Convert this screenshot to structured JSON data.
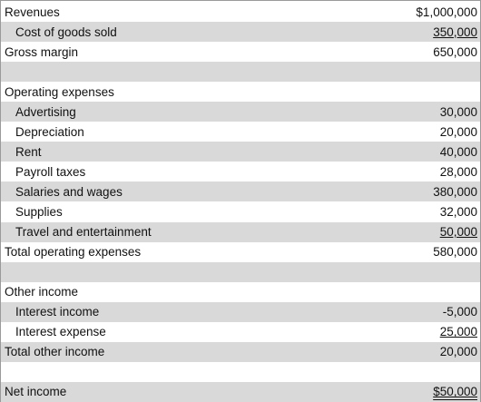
{
  "statement": {
    "rows": [
      {
        "label": "Revenues",
        "value": "$1,000,000"
      },
      {
        "label": "Cost of goods sold",
        "value": "350,000"
      },
      {
        "label": "Gross margin",
        "value": "650,000"
      },
      {
        "label": "",
        "value": ""
      },
      {
        "label": "Operating expenses",
        "value": ""
      },
      {
        "label": "Advertising",
        "value": "30,000"
      },
      {
        "label": "Depreciation",
        "value": "20,000"
      },
      {
        "label": "Rent",
        "value": "40,000"
      },
      {
        "label": "Payroll taxes",
        "value": "28,000"
      },
      {
        "label": "Salaries and wages",
        "value": "380,000"
      },
      {
        "label": "Supplies",
        "value": "32,000"
      },
      {
        "label": "Travel and entertainment",
        "value": "50,000"
      },
      {
        "label": "Total operating expenses",
        "value": "580,000"
      },
      {
        "label": "",
        "value": ""
      },
      {
        "label": "Other income",
        "value": ""
      },
      {
        "label": "Interest income",
        "value": "-5,000"
      },
      {
        "label": "Interest expense",
        "value": "25,000"
      },
      {
        "label": "Total other income",
        "value": "20,000"
      },
      {
        "label": "",
        "value": ""
      },
      {
        "label": "Net income",
        "value": "$50,000"
      }
    ]
  },
  "colors": {
    "shade": "#d9d9d9",
    "text": "#111111",
    "border": "#9a9a9a"
  }
}
